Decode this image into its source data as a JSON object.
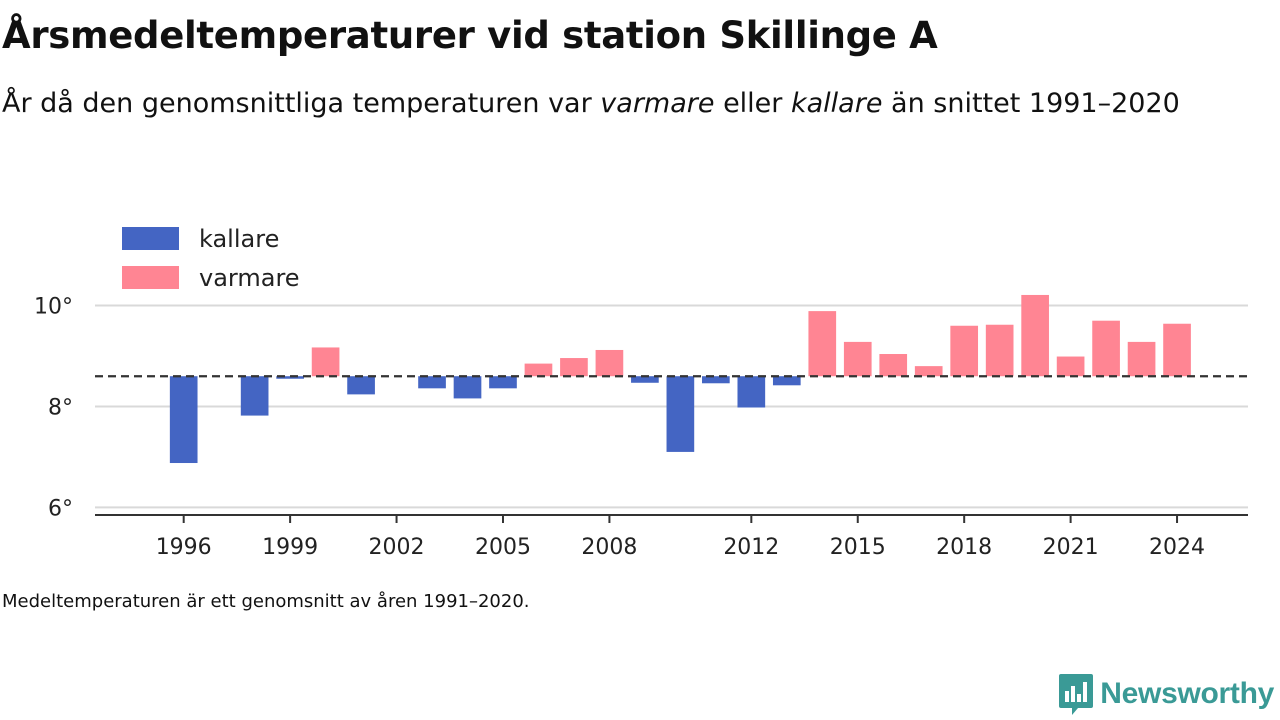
{
  "title": "Årsmedeltemperaturer vid station Skillinge A",
  "subtitle": {
    "part1": "År då den genomsnittliga temperaturen var ",
    "warm_word": "varmare",
    "part2": " eller ",
    "cold_word": "kallare",
    "part3": " än snittet 1991–2020"
  },
  "note": "Medeltemperaturen är ett genomsnitt av åren 1991–2020.",
  "brand": {
    "name": "Newsworthy",
    "icon": "newsworthy-logo-icon"
  },
  "colors": {
    "colder": "#4465c3",
    "warmer": "#ff8593",
    "baseline": "#333333",
    "grid": "#d9d9d9",
    "brand": "#3a9a96"
  },
  "chart_data": {
    "type": "bar",
    "baseline": 8.6,
    "baseline_style": "dashed",
    "ylim": [
      5.85,
      11.2
    ],
    "xlim": [
      1993.5,
      2026
    ],
    "yticks": [
      6,
      8,
      10
    ],
    "ytick_labels": [
      "6°",
      "8°",
      "10°"
    ],
    "xticks": [
      1996,
      1999,
      2002,
      2005,
      2008,
      2012,
      2015,
      2018,
      2021,
      2024
    ],
    "xtick_labels": [
      "1996",
      "1999",
      "2002",
      "2005",
      "2008",
      "2012",
      "2015",
      "2018",
      "2021",
      "2024"
    ],
    "grid": true,
    "legend": {
      "position": "top-left",
      "items": [
        {
          "label": "kallare",
          "color": "#4465c3"
        },
        {
          "label": "varmare",
          "color": "#ff8593"
        }
      ]
    },
    "years": [
      1996,
      1998,
      1999,
      2000,
      2001,
      2003,
      2004,
      2005,
      2006,
      2007,
      2008,
      2009,
      2010,
      2011,
      2012,
      2013,
      2014,
      2015,
      2016,
      2017,
      2018,
      2019,
      2020,
      2021,
      2022,
      2023,
      2024
    ],
    "values": [
      6.88,
      7.82,
      8.55,
      9.17,
      8.24,
      8.36,
      8.16,
      8.36,
      8.85,
      8.96,
      9.12,
      8.47,
      7.1,
      8.46,
      7.98,
      8.42,
      9.89,
      9.28,
      9.04,
      8.8,
      9.6,
      9.62,
      10.21,
      8.99,
      9.7,
      9.28,
      9.64
    ]
  }
}
